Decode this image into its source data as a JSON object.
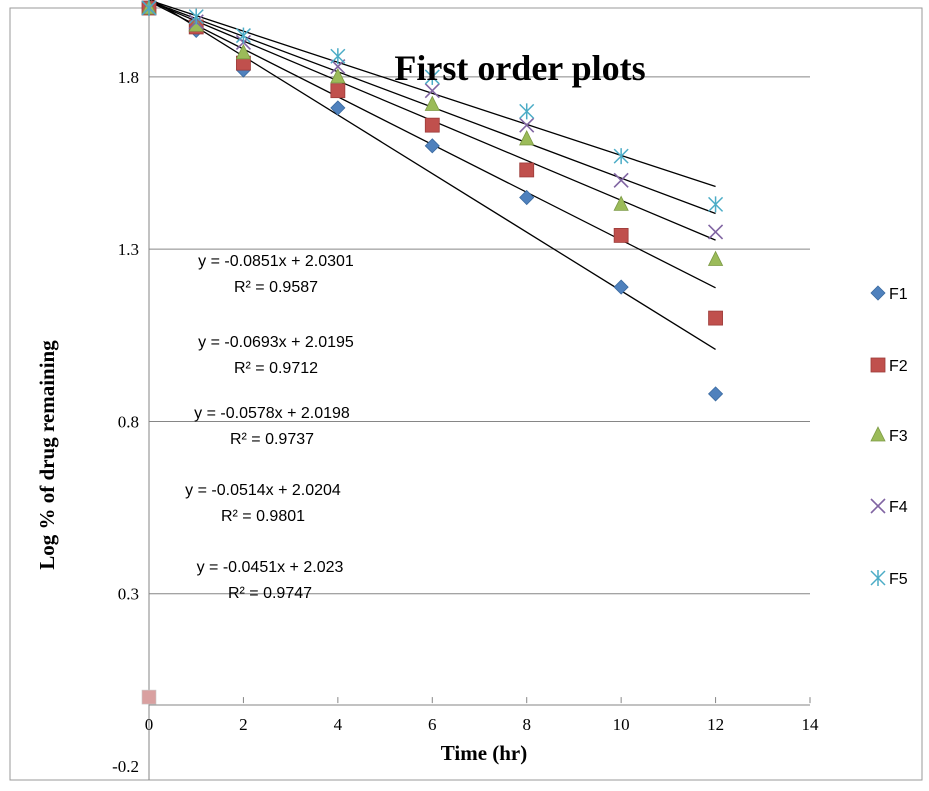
{
  "chart_data": {
    "type": "scatter",
    "title": "First order plots",
    "xlabel": "Time (hr)",
    "ylabel": "Log % of drug remaining",
    "xlim": [
      0,
      14
    ],
    "ylim": [
      -0.2,
      2.0
    ],
    "x_ticks": [
      "0",
      "2",
      "4",
      "6",
      "8",
      "10",
      "12",
      "14"
    ],
    "y_ticks": [
      "-0.2",
      "0.3",
      "0.8",
      "1.3",
      "1.8"
    ],
    "grid": "horizontal",
    "legend_position": "right",
    "x": [
      0,
      1,
      2,
      4,
      6,
      8,
      10,
      12
    ],
    "series": [
      {
        "name": "F1",
        "marker": "diamond",
        "color": "#4F81BD",
        "values": [
          2.0,
          1.935,
          1.82,
          1.71,
          1.6,
          1.45,
          1.19,
          0.88
        ]
      },
      {
        "name": "F2",
        "marker": "square",
        "color": "#C0504D",
        "values": [
          2.0,
          1.945,
          1.84,
          1.76,
          1.66,
          1.53,
          1.34,
          1.1
        ]
      },
      {
        "name": "F3",
        "marker": "triangle",
        "color": "#9BBB59",
        "values": [
          2.0,
          1.95,
          1.87,
          1.8,
          1.72,
          1.62,
          1.43,
          1.27
        ]
      },
      {
        "name": "F4",
        "marker": "x",
        "color": "#8064A2",
        "values": [
          2.0,
          1.96,
          1.9,
          1.83,
          1.76,
          1.66,
          1.5,
          1.35
        ]
      },
      {
        "name": "F5",
        "marker": "star",
        "color": "#4BACC6",
        "values": [
          2.0,
          1.975,
          1.92,
          1.86,
          1.8,
          1.7,
          1.57,
          1.43
        ]
      }
    ],
    "extra_points": [
      {
        "x": 0,
        "y": 0.0,
        "color": "#D9A0A0"
      }
    ],
    "trendlines": [
      {
        "slope": -0.0851,
        "intercept": 2.0301,
        "equation": "y = -0.0851x + 2.0301",
        "r2": "R² = 0.9587"
      },
      {
        "slope": -0.0693,
        "intercept": 2.0195,
        "equation": "y = -0.0693x + 2.0195",
        "r2": "R² = 0.9712"
      },
      {
        "slope": -0.0578,
        "intercept": 2.0198,
        "equation": "y = -0.0578x + 2.0198",
        "r2": "R² = 0.9737"
      },
      {
        "slope": -0.0514,
        "intercept": 2.0204,
        "equation": "y = -0.0514x + 2.0204",
        "r2": "R² = 0.9801"
      },
      {
        "slope": -0.0451,
        "intercept": 2.023,
        "equation": "y = -0.0451x + 2.023",
        "r2": "R² = 0.9747"
      }
    ]
  }
}
